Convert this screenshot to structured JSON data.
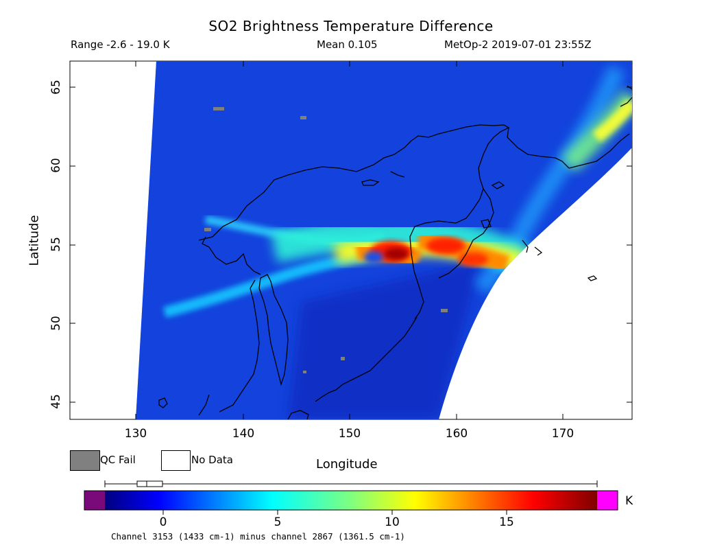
{
  "title": "SO2 Brightness Temperature Difference",
  "range_text": "Range -2.6 - 19.0 K",
  "mean_text": "Mean 0.105",
  "satellite_text": "MetOp-2 2019-07-01 23:55Z",
  "y_axis_label": "Latitude",
  "x_axis_label": "Longitude",
  "y_ticks": [
    "65",
    "60",
    "55",
    "50",
    "45"
  ],
  "x_ticks": [
    "130",
    "140",
    "150",
    "160",
    "170"
  ],
  "legend": {
    "qc_fail": "QC Fail",
    "no_data": "No Data"
  },
  "colorbar": {
    "ticks": [
      "0",
      "5",
      "10",
      "15"
    ],
    "unit": "K",
    "caption": "Channel 3153 (1433 cm-1) minus channel 2867 (1361.5 cm-1)",
    "min": -2.6,
    "max": 19.0
  },
  "colors": {
    "background_field": "#1546e0",
    "qc_fail": "#808080",
    "below_range": "#7a0a7a",
    "above_range": "#ff00ff",
    "coastline": "#000000"
  }
}
